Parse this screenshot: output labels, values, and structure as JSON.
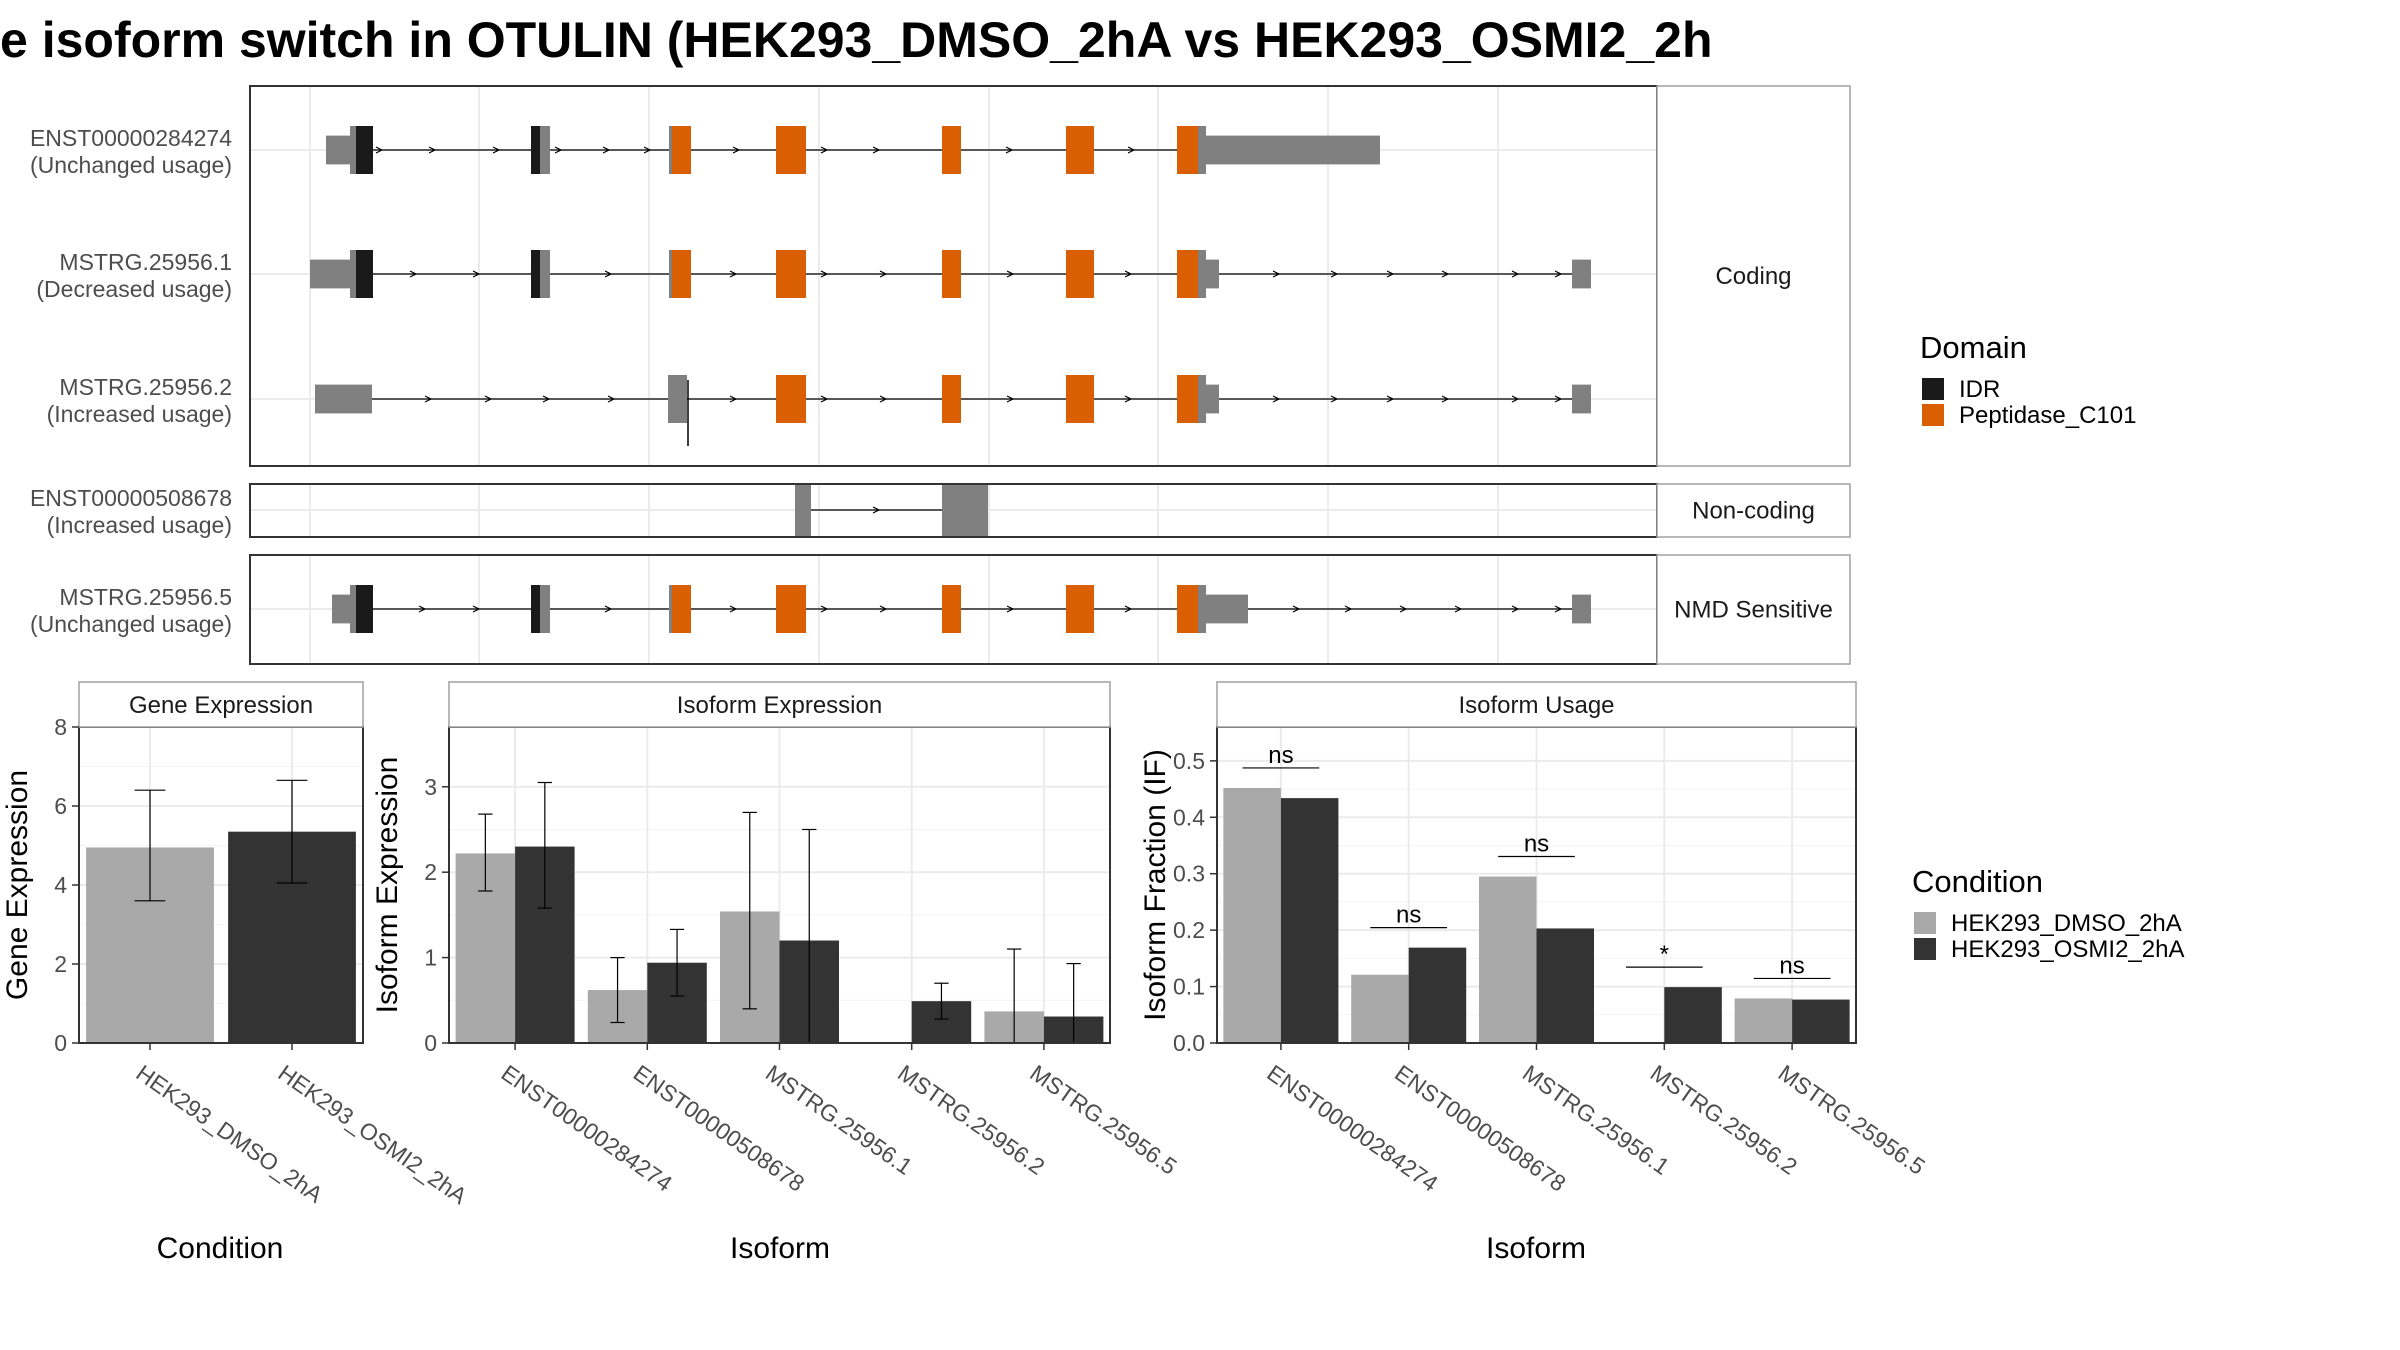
{
  "title": "e isoform switch in OTULIN (HEK293_DMSO_2hA vs HEK293_OSMI2_2h",
  "colors": {
    "idr": "#1a1a1a",
    "peptidase": "#d95f02",
    "utr": "#808080",
    "dmso": "#a9a9a9",
    "osmi2": "#333333",
    "panel_border": "#333333",
    "strip_border": "#a0a0a0",
    "grid": "#ebebeb"
  },
  "legends": {
    "domain": {
      "title": "Domain",
      "items": [
        {
          "label": "IDR",
          "color": "#1a1a1a"
        },
        {
          "label": "Peptidase_C101",
          "color": "#d95f02"
        }
      ]
    },
    "condition": {
      "title": "Condition",
      "items": [
        {
          "label": "HEK293_DMSO_2hA",
          "color": "#a9a9a9"
        },
        {
          "label": "HEK293_OSMI2_2hA",
          "color": "#333333"
        }
      ]
    }
  },
  "isoform_panels": [
    {
      "strip": "Coding",
      "isoforms": [
        {
          "id": "ENST00000284274",
          "usage": "(Unchanged usage)"
        },
        {
          "id": "MSTRG.25956.1",
          "usage": "(Decreased usage)"
        },
        {
          "id": "MSTRG.25956.2",
          "usage": "(Increased usage)"
        }
      ]
    },
    {
      "strip": "Non-coding",
      "isoforms": [
        {
          "id": "ENST00000508678",
          "usage": "(Increased usage)"
        }
      ]
    },
    {
      "strip": "NMD Sensitive",
      "isoforms": [
        {
          "id": "MSTRG.25956.5",
          "usage": "(Unchanged usage)"
        }
      ]
    }
  ],
  "chart_data": [
    {
      "type": "bar",
      "title": "Gene Expression",
      "xlabel": "Condition",
      "ylabel": "Gene Expression",
      "categories": [
        "HEK293_DMSO_2hA",
        "HEK293_OSMI2_2hA"
      ],
      "values": [
        4.95,
        5.35
      ],
      "error_low": [
        3.6,
        4.05
      ],
      "error_high": [
        6.4,
        6.65
      ],
      "ylim": [
        0,
        8
      ],
      "yticks": [
        0,
        2,
        4,
        6,
        8
      ],
      "grid": true
    },
    {
      "type": "bar",
      "title": "Isoform Expression",
      "xlabel": "Isoform",
      "ylabel": "Isoform Expression",
      "categories": [
        "ENST00000284274",
        "ENST00000508678",
        "MSTRG.25956.1",
        "MSTRG.25956.2",
        "MSTRG.25956.5"
      ],
      "series": [
        {
          "name": "HEK293_DMSO_2hA",
          "values": [
            2.22,
            0.62,
            1.54,
            0.0,
            0.37
          ],
          "error_low": [
            1.78,
            0.24,
            0.4,
            0.0,
            0.0
          ],
          "error_high": [
            2.68,
            1.0,
            2.7,
            0.0,
            1.1
          ]
        },
        {
          "name": "HEK293_OSMI2_2hA",
          "values": [
            2.3,
            0.94,
            1.2,
            0.49,
            0.31
          ],
          "error_low": [
            1.58,
            0.55,
            0.0,
            0.28,
            0.0
          ],
          "error_high": [
            3.05,
            1.33,
            2.5,
            0.7,
            0.93
          ]
        }
      ],
      "ylim": [
        0,
        3.7
      ],
      "yticks": [
        0,
        1,
        2,
        3
      ],
      "grid": true
    },
    {
      "type": "bar",
      "title": "Isoform Usage",
      "xlabel": "Isoform",
      "ylabel": "Isoform Fraction (IF)",
      "categories": [
        "ENST00000284274",
        "ENST00000508678",
        "MSTRG.25956.1",
        "MSTRG.25956.2",
        "MSTRG.25956.5"
      ],
      "series": [
        {
          "name": "HEK293_DMSO_2hA",
          "values": [
            0.452,
            0.121,
            0.295,
            0.0,
            0.079
          ]
        },
        {
          "name": "HEK293_OSMI2_2hA",
          "values": [
            0.434,
            0.169,
            0.203,
            0.099,
            0.077
          ]
        }
      ],
      "significance": [
        "ns",
        "ns",
        "ns",
        "*",
        "ns"
      ],
      "ylim": [
        0,
        0.56
      ],
      "yticks": [
        0.0,
        0.1,
        0.2,
        0.3,
        0.4,
        0.5
      ],
      "ytick_labels": [
        "0.0",
        "0.1",
        "0.2",
        "0.3",
        "0.4",
        "0.5"
      ],
      "grid": true
    }
  ]
}
